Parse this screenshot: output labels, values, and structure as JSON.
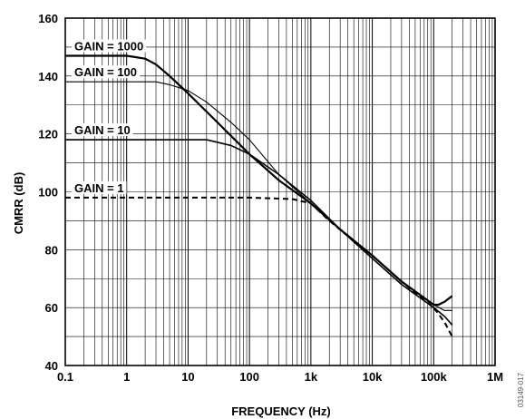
{
  "figure_id": "03149-017",
  "chart_data": {
    "type": "line",
    "title": "",
    "xlabel": "FREQUENCY (Hz)",
    "ylabel": "CMRR (dB)",
    "x_scale": "log",
    "xlim": [
      0.1,
      1000000
    ],
    "ylim": [
      40,
      160
    ],
    "x_ticks": [
      0.1,
      1,
      10,
      100,
      1000,
      10000,
      100000,
      1000000
    ],
    "x_tick_labels": [
      "0.1",
      "1",
      "10",
      "100",
      "1k",
      "10k",
      "100k",
      "1M"
    ],
    "y_ticks": [
      40,
      60,
      80,
      100,
      120,
      140,
      160
    ],
    "y_tick_labels": [
      "40",
      "60",
      "80",
      "100",
      "120",
      "140",
      "160"
    ],
    "grid": true,
    "series": [
      {
        "name": "GAIN = 1000",
        "style": "solid",
        "width": 2.2,
        "points": [
          [
            0.1,
            147
          ],
          [
            1,
            147
          ],
          [
            2,
            146
          ],
          [
            3,
            144
          ],
          [
            5,
            140
          ],
          [
            10,
            134
          ],
          [
            30,
            124
          ],
          [
            100,
            113
          ],
          [
            300,
            104
          ],
          [
            1000,
            96
          ],
          [
            3000,
            87
          ],
          [
            10000,
            78
          ],
          [
            30000,
            69
          ],
          [
            100000,
            61
          ],
          [
            120000,
            61
          ],
          [
            150000,
            62
          ],
          [
            200000,
            64
          ]
        ]
      },
      {
        "name": "GAIN = 100",
        "style": "solid",
        "width": 1.1,
        "points": [
          [
            0.1,
            138
          ],
          [
            1,
            138
          ],
          [
            3,
            138
          ],
          [
            5,
            137
          ],
          [
            10,
            135
          ],
          [
            20,
            131
          ],
          [
            50,
            124
          ],
          [
            100,
            118
          ],
          [
            300,
            106
          ],
          [
            1000,
            96
          ],
          [
            3000,
            87
          ],
          [
            10000,
            78
          ],
          [
            30000,
            69
          ],
          [
            100000,
            61
          ],
          [
            150000,
            59
          ],
          [
            200000,
            59
          ]
        ]
      },
      {
        "name": "GAIN = 10",
        "style": "solid",
        "width": 1.6,
        "points": [
          [
            0.1,
            118
          ],
          [
            1,
            118
          ],
          [
            10,
            118
          ],
          [
            20,
            118
          ],
          [
            50,
            116
          ],
          [
            100,
            113
          ],
          [
            300,
            106
          ],
          [
            1000,
            97
          ],
          [
            3000,
            87
          ],
          [
            10000,
            77
          ],
          [
            30000,
            68
          ],
          [
            100000,
            60
          ],
          [
            150000,
            57
          ],
          [
            200000,
            54
          ]
        ]
      },
      {
        "name": "GAIN = 1",
        "style": "dashed",
        "width": 2,
        "points": [
          [
            0.1,
            98
          ],
          [
            1,
            98
          ],
          [
            10,
            98
          ],
          [
            100,
            98
          ],
          [
            500,
            97.5
          ],
          [
            1000,
            96
          ],
          [
            2000,
            90
          ],
          [
            5000,
            83
          ],
          [
            10000,
            78
          ],
          [
            30000,
            69
          ],
          [
            100000,
            60
          ],
          [
            150000,
            55
          ],
          [
            200000,
            50
          ]
        ]
      }
    ]
  }
}
